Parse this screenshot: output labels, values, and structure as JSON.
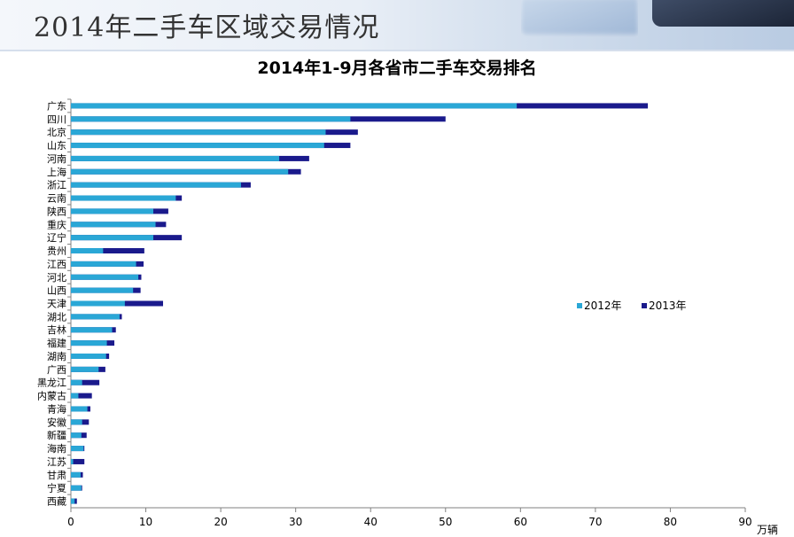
{
  "header": {
    "title": "2014年二手车区域交易情况"
  },
  "colors": {
    "y2012": "#2aa7d6",
    "y2013": "#1a1a8c",
    "y2013_down": "#e8880c",
    "axis": "#808080"
  },
  "chart_data": {
    "type": "bar",
    "orientation": "horizontal",
    "title": "2014年1-9月各省市二手车交易排名",
    "xlabel": "万辆",
    "xlim": [
      0,
      90
    ],
    "xticks": [
      0,
      10,
      20,
      30,
      40,
      50,
      60,
      70,
      80,
      90
    ],
    "legend_position": "right",
    "categories": [
      "广东",
      "四川",
      "北京",
      "山东",
      "河南",
      "上海",
      "浙江",
      "云南",
      "陕西",
      "重庆",
      "辽宁",
      "贵州",
      "江西",
      "河北",
      "山西",
      "天津",
      "湖北",
      "吉林",
      "福建",
      "湖南",
      "广西",
      "黑龙江",
      "内蒙古",
      "青海",
      "安徽",
      "新疆",
      "海南",
      "江苏",
      "甘肃",
      "宁夏",
      "西藏"
    ],
    "series": [
      {
        "name": "2012年",
        "values": [
          59.5,
          37.3,
          34.0,
          33.8,
          27.8,
          29.0,
          22.7,
          14.0,
          11.0,
          11.3,
          11.0,
          4.3,
          8.7,
          9.0,
          8.3,
          7.2,
          6.5,
          5.5,
          4.8,
          4.7,
          3.7,
          1.5,
          1.0,
          2.2,
          1.5,
          1.4,
          1.7,
          0.3,
          1.3,
          1.4,
          0.5
        ]
      },
      {
        "name": "2013年",
        "values": [
          77.0,
          50.0,
          38.3,
          37.3,
          31.8,
          30.7,
          24.0,
          14.8,
          13.0,
          12.7,
          14.8,
          9.8,
          9.7,
          9.4,
          9.3,
          12.3,
          6.8,
          6.0,
          5.8,
          5.1,
          4.6,
          3.8,
          2.8,
          2.6,
          2.4,
          2.1,
          1.8,
          1.8,
          1.6,
          1.5,
          0.8
        ]
      }
    ]
  }
}
